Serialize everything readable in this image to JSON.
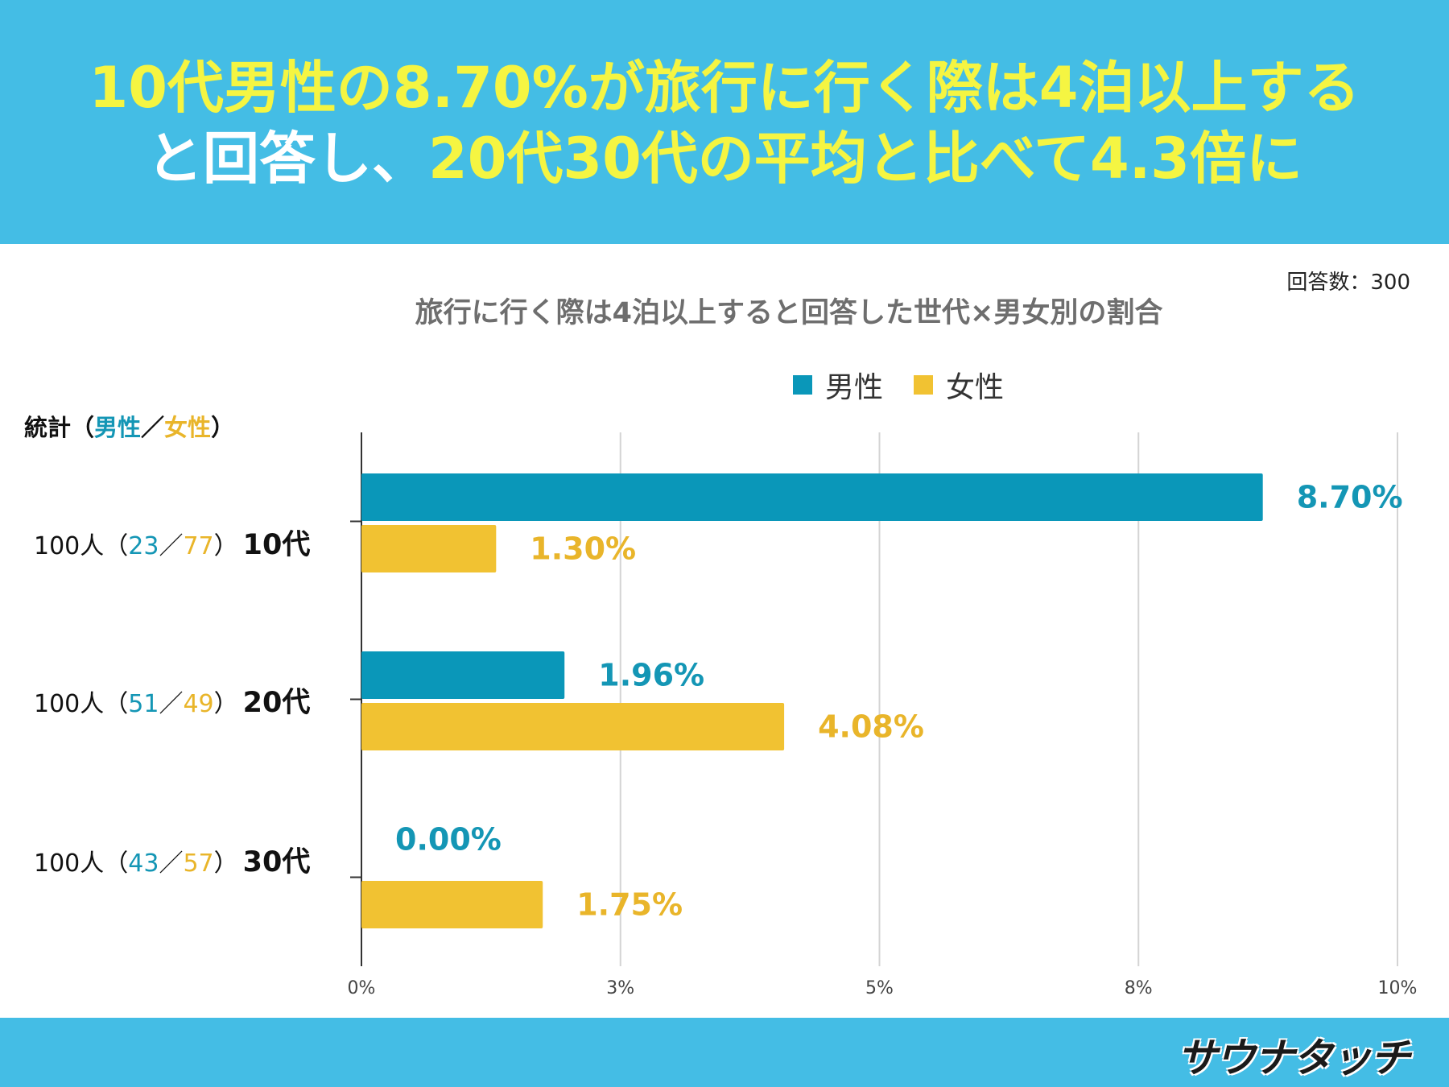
{
  "headline": {
    "line1": "10代男性の8.70%が旅行に行く際は4泊以上する",
    "line2_white": "と回答し、",
    "line2_yellow": "20代30代の平均と比べて4.3倍に"
  },
  "response_count": "回答数：300",
  "stats_header": {
    "prefix": "統計（",
    "male": "男性",
    "sep": "／",
    "female": "女性",
    "suffix": "）"
  },
  "rows": [
    {
      "total": "100人（",
      "male": "23",
      "sep": "／",
      "female": "77",
      "close": "）",
      "age": "10代"
    },
    {
      "total": "100人（",
      "male": "51",
      "sep": "／",
      "female": "49",
      "close": "）",
      "age": "20代"
    },
    {
      "total": "100人（",
      "male": "43",
      "sep": "／",
      "female": "57",
      "close": "）",
      "age": "30代"
    }
  ],
  "colors": {
    "male": "#0a97b9",
    "female": "#f1c232",
    "header_bg": "#44bde5",
    "headline_yellow": "#f5f542"
  },
  "logo_text": "サウナタッチ",
  "chart_data": {
    "type": "bar",
    "orientation": "horizontal",
    "title": "旅行に行く際は4泊以上すると回答した世代×男女別の割合",
    "categories": [
      "10代",
      "20代",
      "30代"
    ],
    "series": [
      {
        "name": "男性",
        "values": [
          8.7,
          1.96,
          0.0
        ],
        "labels": [
          "8.70%",
          "1.96%",
          "0.00%"
        ]
      },
      {
        "name": "女性",
        "values": [
          1.3,
          4.08,
          1.75
        ],
        "labels": [
          "1.30%",
          "4.08%",
          "1.75%"
        ]
      }
    ],
    "xlim": [
      0,
      10
    ],
    "xticks": [
      0,
      2.5,
      5,
      7.5,
      10
    ],
    "xtick_labels": [
      "0%",
      "3%",
      "5%",
      "8%",
      "10%"
    ],
    "grid": true,
    "legend_position": "top"
  }
}
